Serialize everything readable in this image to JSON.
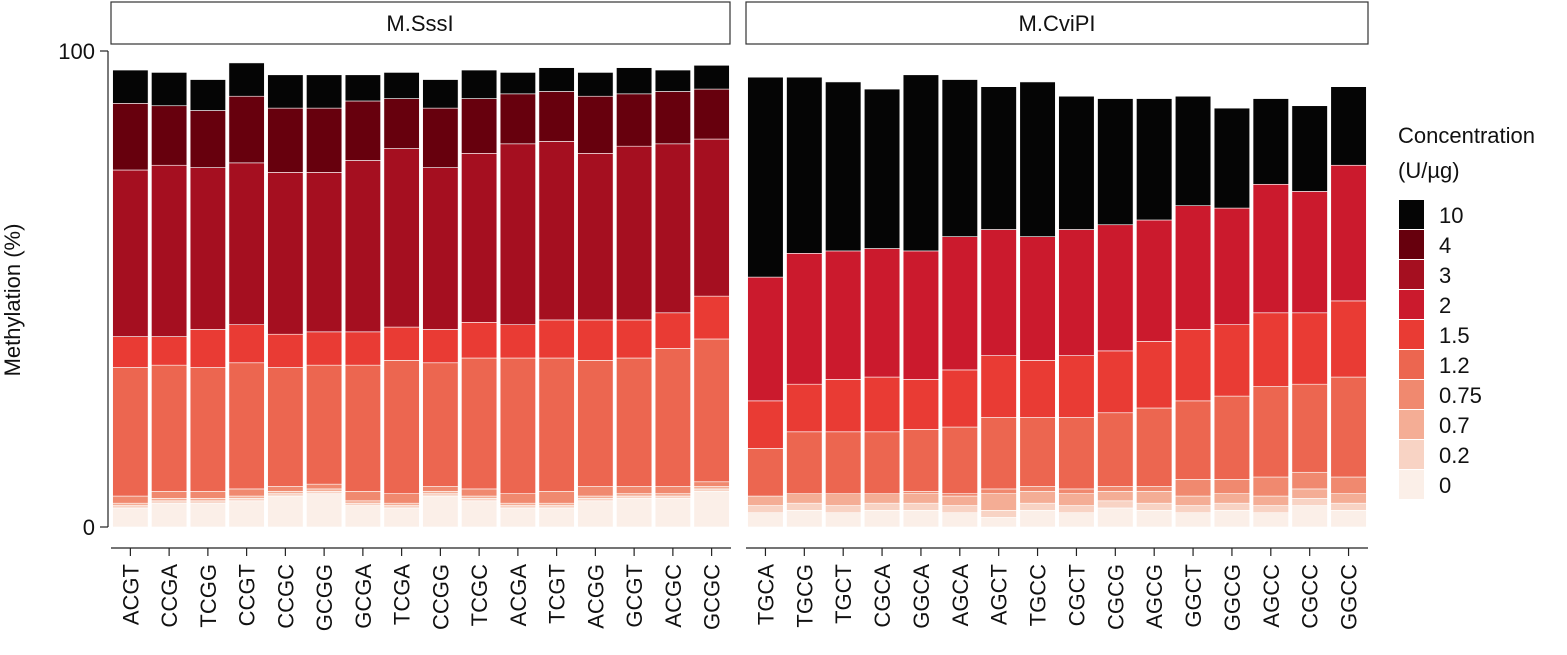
{
  "chart_data": {
    "type": "bar",
    "stacked": true,
    "ylabel": "Methylation (%)",
    "ylim": [
      0,
      100
    ],
    "yticks": [
      0,
      100
    ],
    "facets": [
      {
        "label": "M.SssI",
        "categories": [
          "ACGT",
          "CCGA",
          "TCGG",
          "CCGT",
          "CCGC",
          "GCGG",
          "GCGA",
          "TCGA",
          "CCGG",
          "TCGC",
          "ACGA",
          "TCGT",
          "ACGG",
          "GCGT",
          "ACGC",
          "GCGC"
        ],
        "series": [
          {
            "name": "0",
            "values": [
              4.0,
              5.0,
              5.0,
              5.5,
              6.5,
              7.0,
              4.5,
              4.0,
              6.5,
              5.5,
              4.0,
              4.0,
              5.5,
              6.0,
              6.0,
              7.5
            ]
          },
          {
            "name": "0.2",
            "values": [
              0.5,
              0.5,
              0.5,
              0.5,
              0.5,
              0.5,
              0.5,
              0.5,
              0.5,
              0.5,
              0.5,
              0.5,
              0.5,
              0.5,
              0.5,
              0.5
            ]
          },
          {
            "name": "0.7",
            "values": [
              0.5,
              0.5,
              0.5,
              0.5,
              0.5,
              0.5,
              0.5,
              0.5,
              0.5,
              0.5,
              0.5,
              0.5,
              0.5,
              0.5,
              0.5,
              0.5
            ]
          },
          {
            "name": "0.75",
            "values": [
              1.5,
              1.5,
              1.5,
              1.5,
              1.0,
              1.0,
              2.0,
              2.0,
              1.0,
              1.5,
              2.0,
              2.5,
              2.0,
              1.5,
              1.5,
              1.0
            ]
          },
          {
            "name": "1.2",
            "values": [
              27.0,
              26.5,
              26.0,
              26.5,
              25.0,
              25.0,
              26.5,
              28.0,
              26.0,
              27.5,
              28.5,
              28.0,
              26.5,
              27.0,
              29.0,
              30.0
            ]
          },
          {
            "name": "1.5",
            "values": [
              6.5,
              6.0,
              8.0,
              8.0,
              7.0,
              7.0,
              7.0,
              7.0,
              7.0,
              7.5,
              7.0,
              8.0,
              8.5,
              8.0,
              7.5,
              9.0
            ]
          },
          {
            "name": "2",
            "values": [
              0.0,
              0.0,
              0.0,
              0.0,
              0.0,
              0.0,
              0.0,
              0.0,
              0.0,
              0.0,
              0.0,
              0.0,
              0.0,
              0.0,
              0.0,
              0.0
            ]
          },
          {
            "name": "3",
            "values": [
              35.0,
              36.0,
              34.0,
              34.0,
              34.0,
              33.5,
              36.0,
              37.5,
              34.0,
              35.5,
              38.0,
              37.5,
              35.0,
              36.5,
              35.5,
              33.0
            ]
          },
          {
            "name": "4",
            "values": [
              14.0,
              12.5,
              12.0,
              14.0,
              13.5,
              13.5,
              12.5,
              10.5,
              12.5,
              11.5,
              10.5,
              10.5,
              12.0,
              11.0,
              11.0,
              10.5
            ]
          },
          {
            "name": "10",
            "values": [
              7.0,
              7.0,
              6.5,
              7.0,
              7.0,
              7.0,
              5.5,
              5.5,
              6.0,
              6.0,
              4.5,
              5.0,
              5.0,
              5.5,
              4.5,
              5.0
            ]
          }
        ]
      },
      {
        "label": "M.CviPI",
        "categories": [
          "TGCA",
          "TGCG",
          "TGCT",
          "CGCA",
          "GGCA",
          "AGCA",
          "AGCT",
          "TGCC",
          "CGCT",
          "CGCG",
          "AGCG",
          "GGCT",
          "GGCG",
          "AGCC",
          "CGCC",
          "GGCC"
        ],
        "series": [
          {
            "name": "0",
            "values": [
              3.0,
              3.5,
              3.0,
              3.5,
              3.5,
              3.0,
              2.0,
              3.5,
              3.0,
              4.0,
              3.5,
              3.0,
              3.5,
              3.0,
              4.5,
              3.5
            ]
          },
          {
            "name": "0.2",
            "values": [
              1.5,
              1.5,
              1.5,
              1.5,
              1.5,
              1.5,
              1.5,
              1.5,
              1.5,
              1.5,
              1.5,
              1.5,
              1.5,
              1.5,
              1.5,
              1.5
            ]
          },
          {
            "name": "0.7",
            "values": [
              2.0,
              2.0,
              2.5,
              2.0,
              2.0,
              2.0,
              3.5,
              2.5,
              2.5,
              2.0,
              2.5,
              2.0,
              2.0,
              2.0,
              2.0,
              2.0
            ]
          },
          {
            "name": "0.75",
            "values": [
              0.0,
              0.0,
              0.0,
              0.0,
              0.5,
              0.5,
              1.0,
              1.0,
              1.0,
              1.0,
              1.0,
              3.5,
              3.0,
              4.0,
              3.5,
              3.5
            ]
          },
          {
            "name": "1.2",
            "values": [
              10.0,
              13.0,
              13.0,
              13.0,
              13.0,
              14.0,
              15.0,
              14.5,
              15.0,
              15.5,
              16.5,
              16.5,
              17.5,
              19.0,
              18.5,
              21.0
            ]
          },
          {
            "name": "1.5",
            "values": [
              10.0,
              10.0,
              11.0,
              11.5,
              10.5,
              12.0,
              13.0,
              12.0,
              13.0,
              13.0,
              14.0,
              15.0,
              15.0,
              15.5,
              15.0,
              16.0
            ]
          },
          {
            "name": "2",
            "values": [
              26.0,
              27.5,
              27.0,
              27.0,
              27.0,
              28.0,
              26.5,
              26.0,
              26.5,
              26.5,
              25.5,
              26.0,
              24.5,
              27.0,
              25.5,
              28.5
            ]
          },
          {
            "name": "3",
            "values": [
              0.0,
              0.0,
              0.0,
              0.0,
              0.0,
              0.0,
              0.0,
              0.0,
              0.0,
              0.0,
              0.0,
              0.0,
              0.0,
              0.0,
              0.0,
              0.0
            ]
          },
          {
            "name": "4",
            "values": [
              0.0,
              0.0,
              0.0,
              0.0,
              0.0,
              0.0,
              0.0,
              0.0,
              0.0,
              0.0,
              0.0,
              0.0,
              0.0,
              0.0,
              0.0,
              0.0
            ]
          },
          {
            "name": "10",
            "values": [
              42.0,
              37.0,
              35.5,
              33.5,
              37.0,
              33.0,
              30.0,
              32.5,
              28.0,
              26.5,
              25.5,
              23.0,
              21.0,
              18.0,
              18.0,
              16.5
            ]
          }
        ]
      }
    ],
    "legend": {
      "title_line1": "Concentration",
      "title_line2": "(U/µg)",
      "placement": "right",
      "entries": [
        {
          "label": "10",
          "color": "#050505"
        },
        {
          "label": "4",
          "color": "#67000d"
        },
        {
          "label": "3",
          "color": "#a50f20"
        },
        {
          "label": "2",
          "color": "#cb1a2d"
        },
        {
          "label": "1.5",
          "color": "#e93b34"
        },
        {
          "label": "1.2",
          "color": "#ec6650"
        },
        {
          "label": "0.75",
          "color": "#f0896f"
        },
        {
          "label": "0.7",
          "color": "#f4ad95"
        },
        {
          "label": "0.2",
          "color": "#f8d3c4"
        },
        {
          "label": "0",
          "color": "#fbefe8"
        }
      ]
    }
  }
}
